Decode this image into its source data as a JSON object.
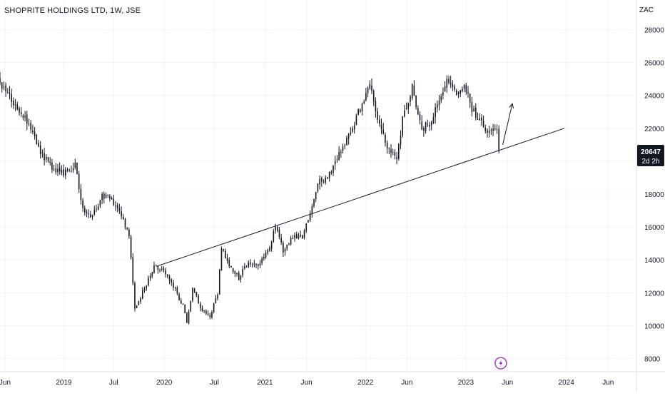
{
  "header": {
    "title": "SHOPRITE HOLDINGS LTD, 1W, JSE",
    "currency": "ZAC"
  },
  "price_tag": {
    "value": "20647",
    "countdown": "2d 2h"
  },
  "colors": {
    "candle": "#131722",
    "grid": "#f0f3fa",
    "price_tag_bg": "#131722",
    "price_tag_text": "#ffffff",
    "lightning": "#9c27b0",
    "axis_text": "#131722"
  },
  "icons": {
    "event_marker": "lightning-icon"
  },
  "chart_data": {
    "type": "candlestick",
    "title": "SHOPRITE HOLDINGS LTD, 1W, JSE",
    "ylabel": "ZAC",
    "ylim": [
      7200,
      29800
    ],
    "grid": true,
    "x_ticks": [
      "Jun",
      "2019",
      "Jul",
      "2020",
      "Jul",
      "2021",
      "Jun",
      "2022",
      "Jun",
      "2023",
      "Jun",
      "2024",
      "Jun"
    ],
    "x_tick_dates": [
      "2018-06-01",
      "2019-01-01",
      "2019-07-01",
      "2020-01-01",
      "2020-07-01",
      "2021-01-01",
      "2021-06-01",
      "2022-01-01",
      "2022-06-01",
      "2023-01-01",
      "2023-06-01",
      "2024-01-01",
      "2024-06-01"
    ],
    "x_range": [
      "2018-05-14",
      "2024-09-12"
    ],
    "y_ticks": [
      8000,
      10000,
      12000,
      14000,
      16000,
      18000,
      20000,
      22000,
      24000,
      26000,
      28000
    ],
    "last_price": 20647,
    "anchors": [
      [
        "2018-05-14",
        25000
      ],
      [
        "2018-06-25",
        24000
      ],
      [
        "2018-07-30",
        22800
      ],
      [
        "2018-09-03",
        22400
      ],
      [
        "2018-10-15",
        20500
      ],
      [
        "2018-11-26",
        19600
      ],
      [
        "2019-01-07",
        19200
      ],
      [
        "2019-02-18",
        19700
      ],
      [
        "2019-03-18",
        17000
      ],
      [
        "2019-04-22",
        16600
      ],
      [
        "2019-05-27",
        17900
      ],
      [
        "2019-06-24",
        17800
      ],
      [
        "2019-08-05",
        16700
      ],
      [
        "2019-09-02",
        15600
      ],
      [
        "2019-09-23",
        11000
      ],
      [
        "2019-10-28",
        12300
      ],
      [
        "2019-12-02",
        13600
      ],
      [
        "2020-01-06",
        13300
      ],
      [
        "2020-02-10",
        12400
      ],
      [
        "2020-03-16",
        11200
      ],
      [
        "2020-03-30",
        10200
      ],
      [
        "2020-04-20",
        12300
      ],
      [
        "2020-05-25",
        10900
      ],
      [
        "2020-06-22",
        10500
      ],
      [
        "2020-07-06",
        11400
      ],
      [
        "2020-07-20",
        11800
      ],
      [
        "2020-08-03",
        14800
      ],
      [
        "2020-08-31",
        13700
      ],
      [
        "2020-10-05",
        12900
      ],
      [
        "2020-11-09",
        13900
      ],
      [
        "2020-12-14",
        13600
      ],
      [
        "2021-01-18",
        14500
      ],
      [
        "2021-02-15",
        16000
      ],
      [
        "2021-03-15",
        14600
      ],
      [
        "2021-04-19",
        15400
      ],
      [
        "2021-05-24",
        15400
      ],
      [
        "2021-06-21",
        16800
      ],
      [
        "2021-07-19",
        18700
      ],
      [
        "2021-08-23",
        19000
      ],
      [
        "2021-09-20",
        20000
      ],
      [
        "2021-10-25",
        21100
      ],
      [
        "2021-11-29",
        22300
      ],
      [
        "2021-12-27",
        23500
      ],
      [
        "2022-01-24",
        24500
      ],
      [
        "2022-02-21",
        22600
      ],
      [
        "2022-03-28",
        21000
      ],
      [
        "2022-05-02",
        20300
      ],
      [
        "2022-05-23",
        22500
      ],
      [
        "2022-06-27",
        24500
      ],
      [
        "2022-08-01",
        22000
      ],
      [
        "2022-09-05",
        22400
      ],
      [
        "2022-10-10",
        24000
      ],
      [
        "2022-11-07",
        25000
      ],
      [
        "2022-12-05",
        24100
      ],
      [
        "2023-01-02",
        24600
      ],
      [
        "2023-01-30",
        23200
      ],
      [
        "2023-02-27",
        22500
      ],
      [
        "2023-03-27",
        21800
      ],
      [
        "2023-04-10",
        22100
      ],
      [
        "2023-05-01",
        21800
      ],
      [
        "2023-05-08",
        20647
      ]
    ],
    "annotations": [
      {
        "type": "trendline",
        "from": [
          "2019-12-02",
          13600
        ],
        "to": [
          "2023-12-25",
          22000
        ]
      },
      {
        "type": "arrow",
        "from": [
          "2023-05-15",
          21000
        ],
        "to": [
          "2023-06-19",
          23500
        ]
      },
      {
        "type": "event_marker",
        "date": "2023-05-08"
      }
    ]
  }
}
